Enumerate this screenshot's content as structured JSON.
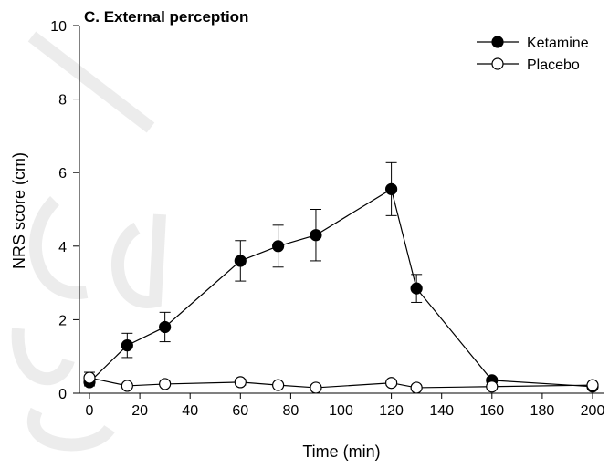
{
  "chart_data": {
    "type": "line",
    "title": "C. External perception",
    "xlabel": "Time (min)",
    "ylabel": "NRS score (cm)",
    "xlim": [
      0,
      200
    ],
    "ylim": [
      0,
      10
    ],
    "xticks": [
      0,
      20,
      40,
      60,
      80,
      100,
      120,
      140,
      160,
      180,
      200
    ],
    "yticks": [
      0,
      2,
      4,
      6,
      8,
      10
    ],
    "grid": false,
    "legend_position": "top-right",
    "series": [
      {
        "name": "Ketamine",
        "marker": "filled-circle",
        "color": "#000000",
        "x": [
          0,
          15,
          30,
          60,
          75,
          90,
          120,
          130,
          160,
          200
        ],
        "y": [
          0.3,
          1.3,
          1.8,
          3.6,
          4.0,
          4.3,
          5.55,
          2.85,
          0.35,
          0.18
        ],
        "error": [
          0.1,
          0.33,
          0.4,
          0.55,
          0.57,
          0.7,
          0.72,
          0.38,
          0.05,
          0.05
        ]
      },
      {
        "name": "Placebo",
        "marker": "open-circle",
        "color": "#000000",
        "x": [
          0,
          15,
          30,
          60,
          75,
          90,
          120,
          130,
          160,
          200
        ],
        "y": [
          0.42,
          0.2,
          0.25,
          0.3,
          0.22,
          0.15,
          0.28,
          0.15,
          0.18,
          0.22
        ],
        "error": [
          0.15,
          0.05,
          0.05,
          0.08,
          0.05,
          0.04,
          0.07,
          0.04,
          0.04,
          0.05
        ]
      }
    ]
  }
}
